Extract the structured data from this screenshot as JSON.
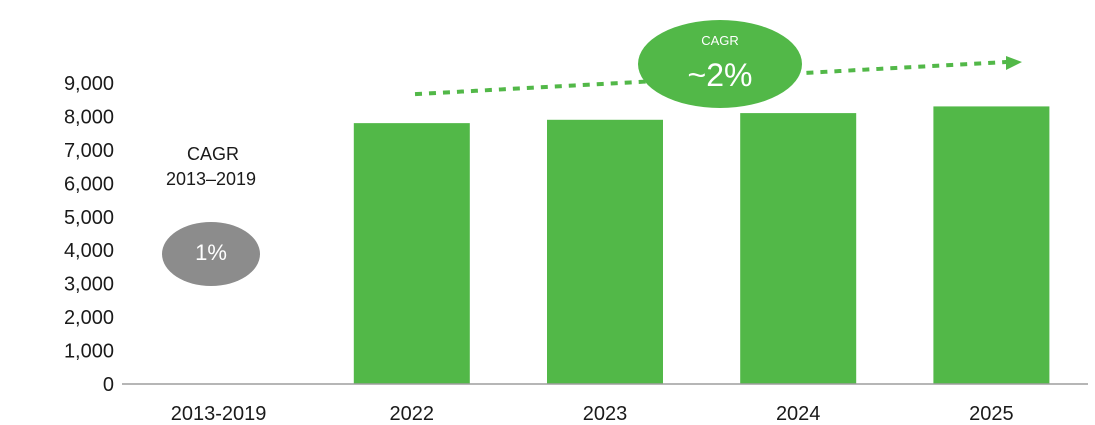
{
  "chart_data": {
    "type": "bar",
    "categories": [
      "2013-2019",
      "2022",
      "2023",
      "2024",
      "2025"
    ],
    "values": [
      null,
      7800,
      7900,
      8100,
      8300
    ],
    "ylim": [
      0,
      9000
    ],
    "yticks": [
      0,
      1000,
      2000,
      3000,
      4000,
      5000,
      6000,
      7000,
      8000,
      9000
    ],
    "ytick_labels": [
      "0",
      "1,000",
      "2,000",
      "3,000",
      "4,000",
      "5,000",
      "6,000",
      "7,000",
      "8,000",
      "9,000"
    ],
    "grid": false,
    "bar_color": "#52b848",
    "annotations": {
      "historical": {
        "label_line1": "CAGR",
        "label_line2": "2013–2019",
        "value": "1%",
        "color": "#8c8c8c"
      },
      "forecast": {
        "label": "CAGR",
        "value": "~2%",
        "color": "#52b848"
      }
    }
  }
}
